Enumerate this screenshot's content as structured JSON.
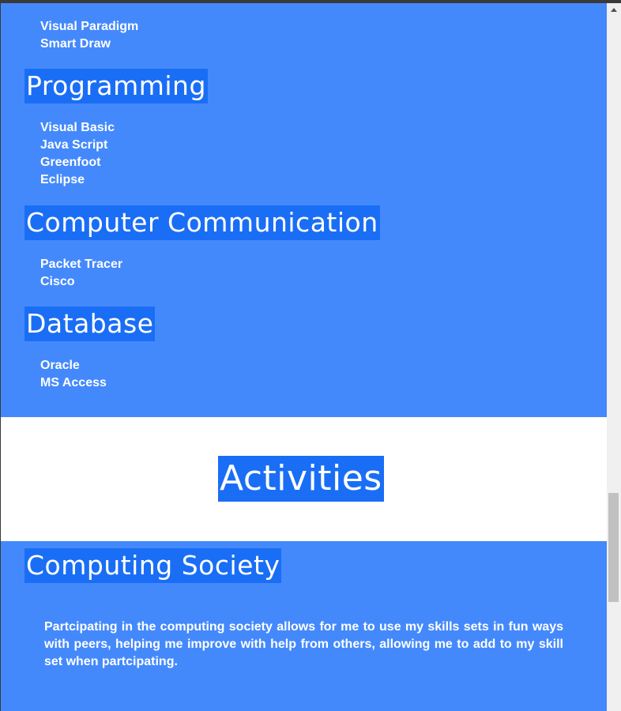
{
  "skills": {
    "design_items": [
      "Visual Paradigm",
      "Smart Draw"
    ],
    "programming": {
      "heading": "Programming",
      "items": [
        "Visual Basic",
        "Java Script",
        "Greenfoot",
        "Eclipse"
      ]
    },
    "communication": {
      "heading": "Computer Communication",
      "items": [
        "Packet Tracer",
        "Cisco"
      ]
    },
    "database": {
      "heading": "Database",
      "items": [
        "Oracle",
        "MS Access"
      ]
    }
  },
  "activities": {
    "title": "Activities",
    "computing_society": {
      "heading": "Computing Society",
      "description": "Partcipating in the computing society allows for me to use my skills sets in fun ways with peers, helping me improve with help from others, allowing me to add to my skill set when partcipating."
    }
  },
  "scrollbar": {
    "up_icon": "scroll-up-arrow-icon"
  },
  "colors": {
    "section_blue": "#4489fc",
    "heading_highlight": "#1a6ef5",
    "text": "#ffffff"
  }
}
